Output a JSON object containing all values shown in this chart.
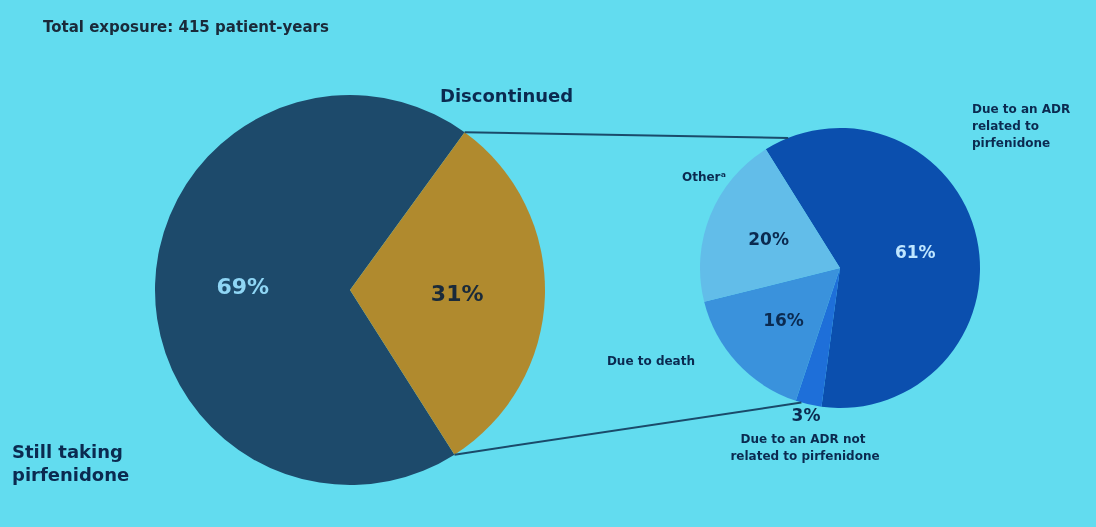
{
  "chart_data": [
    {
      "type": "pie",
      "title": "Total exposure: 415 patient-years",
      "categories": [
        "Still taking pirfenidone",
        "Discontinued"
      ],
      "values": [
        69,
        31
      ],
      "colors": [
        "#1d4a6b",
        "#b08a2e"
      ],
      "value_labels": [
        "69%",
        "31%"
      ]
    },
    {
      "type": "pie",
      "categories": [
        "Due to an ADR related to pirfenidone",
        "Due to an ADR not related to pirfenidone",
        "Due to death",
        "Otherᵃ"
      ],
      "values": [
        61,
        3,
        16,
        20
      ],
      "colors": [
        "#0b4fae",
        "#1e6fd9",
        "#3a92dc",
        "#62bde9"
      ],
      "value_labels": [
        "61%",
        "3%",
        "16%",
        "20%"
      ]
    }
  ]
}
